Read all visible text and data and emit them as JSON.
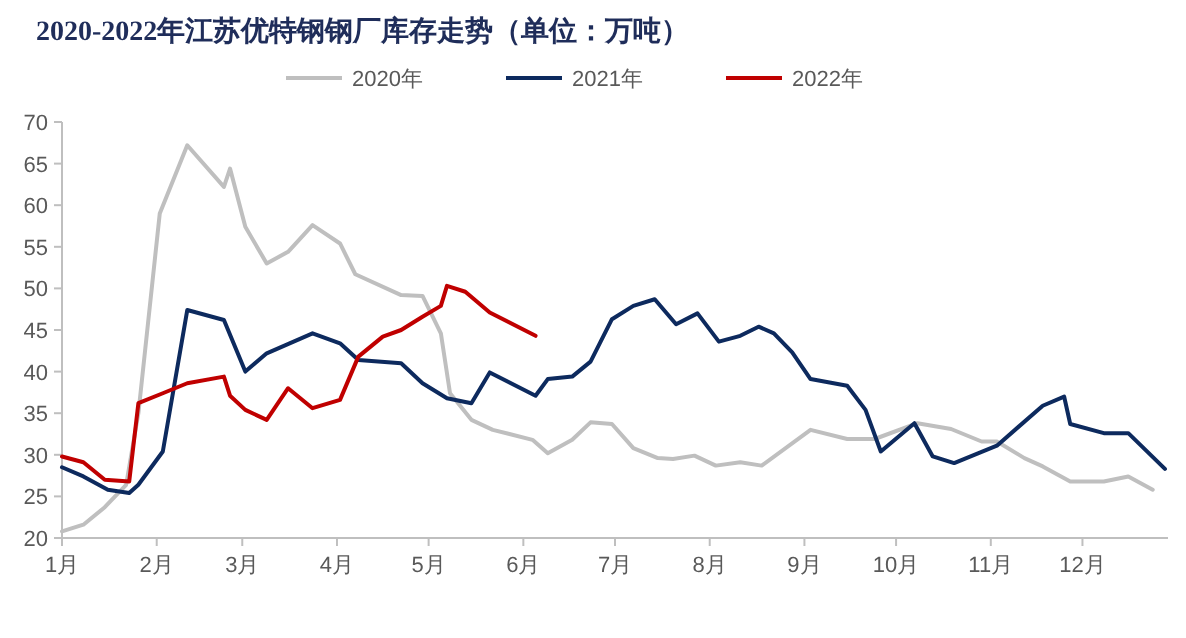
{
  "chart_data": {
    "type": "line",
    "title": "2020-2022年江苏优特钢钢厂库存走势（单位：万吨）",
    "xlim": [
      "--01-01",
      "--12-29"
    ],
    "xticks": [
      {
        "value": "--01-01",
        "label": "1月"
      },
      {
        "value": "--02-01",
        "label": "2月"
      },
      {
        "value": "--03-01",
        "label": "3月"
      },
      {
        "value": "--04-01",
        "label": "4月"
      },
      {
        "value": "--05-01",
        "label": "5月"
      },
      {
        "value": "--06-01",
        "label": "6月"
      },
      {
        "value": "--07-01",
        "label": "7月"
      },
      {
        "value": "--08-01",
        "label": "8月"
      },
      {
        "value": "--09-01",
        "label": "9月"
      },
      {
        "value": "--10-01",
        "label": "10月"
      },
      {
        "value": "--11-01",
        "label": "11月"
      },
      {
        "value": "--12-01",
        "label": "12月"
      }
    ],
    "ylim": [
      20,
      70
    ],
    "yticks": [
      20,
      25,
      30,
      35,
      40,
      45,
      50,
      55,
      60,
      65,
      70
    ],
    "grid": false,
    "legend": "top",
    "marker": "none",
    "line_style": "solid",
    "series": [
      {
        "name": "2020年",
        "color": "#bfbfbf",
        "x": [
          "--01-01",
          "--01-08",
          "--01-15",
          "--01-22",
          "--01-26",
          "--02-02",
          "--02-11",
          "--02-23",
          "--02-25",
          "--03-02",
          "--03-09",
          "--03-16",
          "--03-24",
          "--04-02",
          "--04-07",
          "--04-22",
          "--04-29",
          "--05-05",
          "--05-08",
          "--05-15",
          "--05-22",
          "--06-04",
          "--06-09",
          "--06-17",
          "--06-23",
          "--06-30",
          "--07-07",
          "--07-15",
          "--07-20",
          "--07-27",
          "--08-03",
          "--08-11",
          "--08-18",
          "--09-03",
          "--09-15",
          "--09-24",
          "--10-08",
          "--10-19",
          "--10-29",
          "--11-03",
          "--11-12",
          "--11-18",
          "--11-27",
          "--12-08",
          "--12-16",
          "--12-24"
        ],
        "values": [
          20.8,
          21.6,
          23.7,
          26.4,
          35,
          59,
          67.2,
          62.2,
          64.4,
          57.4,
          53,
          54.4,
          57.6,
          55.4,
          51.7,
          49.2,
          49.1,
          44.6,
          37.4,
          34.2,
          33,
          31.8,
          30.2,
          31.8,
          33.9,
          33.7,
          30.8,
          29.6,
          29.5,
          29.9,
          28.7,
          29.1,
          28.7,
          33,
          31.9,
          31.9,
          33.8,
          33.1,
          31.6,
          31.6,
          29.6,
          28.6,
          26.8,
          26.8,
          27.4,
          25.8
        ]
      },
      {
        "name": "2021年",
        "color": "#0d2a5e",
        "x": [
          "--01-01",
          "--01-08",
          "--01-16",
          "--01-23",
          "--01-26",
          "--02-03",
          "--02-11",
          "--02-23",
          "--03-02",
          "--03-09",
          "--03-24",
          "--04-02",
          "--04-08",
          "--04-22",
          "--04-29",
          "--05-07",
          "--05-15",
          "--05-21",
          "--06-05",
          "--06-09",
          "--06-17",
          "--06-23",
          "--06-30",
          "--07-07",
          "--07-14",
          "--07-21",
          "--07-28",
          "--08-04",
          "--08-11",
          "--08-17",
          "--08-22",
          "--08-28",
          "--09-03",
          "--09-15",
          "--09-21",
          "--09-26",
          "--10-07",
          "--10-13",
          "--10-20",
          "--11-03",
          "--11-18",
          "--11-25",
          "--11-27",
          "--12-08",
          "--12-16",
          "--12-28"
        ],
        "values": [
          28.5,
          27.4,
          25.8,
          25.4,
          26.4,
          30.4,
          47.4,
          46.2,
          40,
          42.2,
          44.6,
          43.4,
          41.4,
          41,
          38.6,
          36.8,
          36.2,
          39.9,
          37.1,
          39.1,
          39.4,
          41.2,
          46.3,
          47.9,
          48.7,
          45.7,
          47,
          43.6,
          44.3,
          45.4,
          44.6,
          42.3,
          39.1,
          38.3,
          35.4,
          30.4,
          33.8,
          29.8,
          29,
          31.1,
          35.9,
          37,
          33.7,
          32.6,
          32.6,
          28.3
        ]
      },
      {
        "name": "2022年",
        "color": "#c00000",
        "x": [
          "--01-01",
          "--01-08",
          "--01-15",
          "--01-23",
          "--01-26",
          "--02-03",
          "--02-11",
          "--02-23",
          "--02-25",
          "--03-02",
          "--03-09",
          "--03-16",
          "--03-24",
          "--04-02",
          "--04-08",
          "--04-16",
          "--04-22",
          "--04-29",
          "--05-05",
          "--05-07",
          "--05-13",
          "--05-21",
          "--06-05"
        ],
        "values": [
          29.8,
          29.1,
          27,
          26.8,
          36.2,
          37.4,
          38.6,
          39.4,
          37.1,
          35.4,
          34.2,
          38,
          35.6,
          36.6,
          41.8,
          44.2,
          45,
          46.6,
          47.9,
          50.3,
          49.6,
          47.1,
          44.3
        ]
      }
    ]
  }
}
